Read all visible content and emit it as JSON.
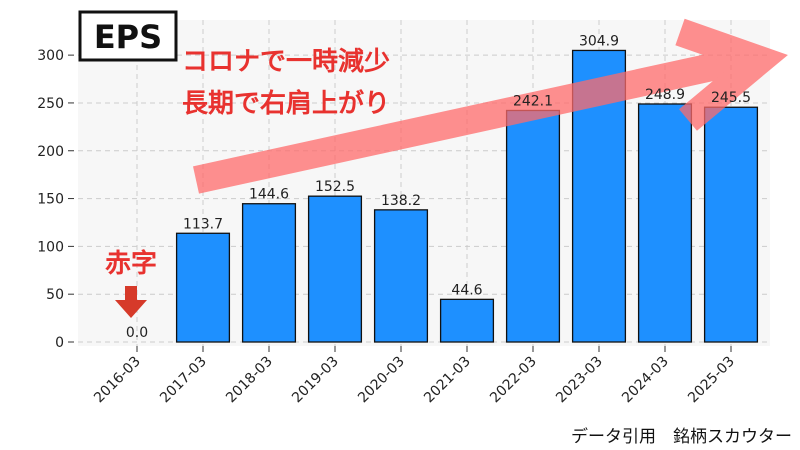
{
  "chart_data": {
    "type": "bar",
    "title": "EPS",
    "categories": [
      "2016-03",
      "2017-03",
      "2018-03",
      "2019-03",
      "2020-03",
      "2021-03",
      "2022-03",
      "2023-03",
      "2024-03",
      "2025-03"
    ],
    "values": [
      0,
      113.7,
      144.6,
      152.5,
      138.2,
      44.6,
      242.1,
      304.9,
      248.9,
      245.5
    ],
    "value_labels": [
      "0.0",
      "113.7",
      "144.6",
      "152.5",
      "138.2",
      "44.6",
      "242.1",
      "304.9",
      "248.9",
      "245.5"
    ],
    "color": "#1e90ff",
    "ylim": [
      0,
      320
    ],
    "yticks": [
      0,
      50,
      100,
      150,
      200,
      250,
      300
    ],
    "grid": true,
    "annotations": [
      "コロナで一時減少",
      "長期で右肩上がり",
      "赤字"
    ],
    "source": "データ引用　銘柄スカウター"
  }
}
